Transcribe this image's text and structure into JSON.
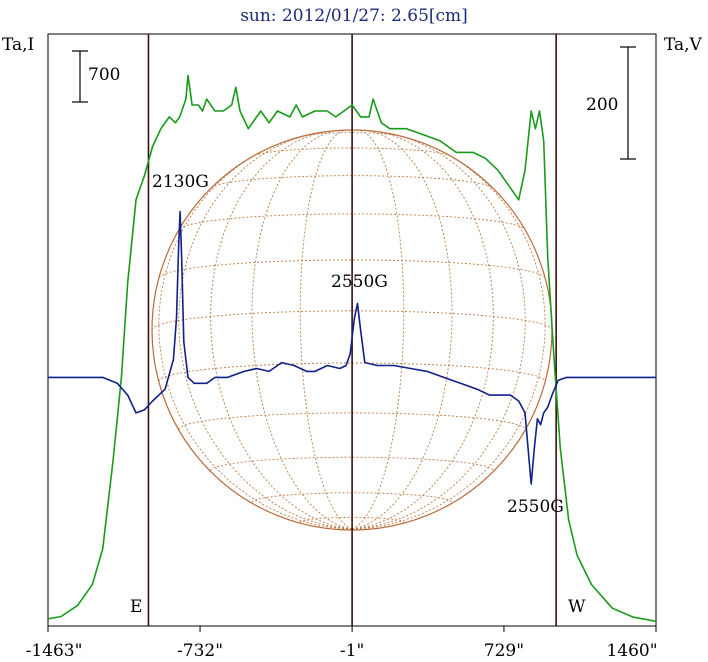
{
  "chart_data": {
    "type": "line",
    "title": "sun: 2012/01/27: 2.65[cm]",
    "left_axis_label": "Ta,I",
    "right_axis_label": "Ta,V",
    "x_ticks": [
      -1463,
      -732,
      -1,
      729,
      1460
    ],
    "x_tick_labels": [
      "-1463\"",
      "-732\"",
      "-1\"",
      "729\"",
      "1460\""
    ],
    "xlim": [
      -1463,
      1460
    ],
    "vertical_lines": [
      -980,
      -1,
      980
    ],
    "limb_labels": {
      "east": "E",
      "west": "W"
    },
    "scale_bars": {
      "left": "700",
      "right": "200"
    },
    "annotations": [
      {
        "text": "2130G",
        "x": -830
      },
      {
        "text": "2550G",
        "x": 50
      },
      {
        "text": "2550G",
        "x": 920
      }
    ],
    "series": [
      {
        "key": "I",
        "color": "#1a9a1a",
        "points": [
          [
            -1463,
            0.012
          ],
          [
            -1400,
            0.016
          ],
          [
            -1320,
            0.035
          ],
          [
            -1250,
            0.07
          ],
          [
            -1200,
            0.13
          ],
          [
            -1150,
            0.28
          ],
          [
            -1110,
            0.42
          ],
          [
            -1080,
            0.58
          ],
          [
            -1040,
            0.72
          ],
          [
            -1000,
            0.76
          ],
          [
            -960,
            0.81
          ],
          [
            -920,
            0.84
          ],
          [
            -880,
            0.86
          ],
          [
            -850,
            0.85
          ],
          [
            -830,
            0.86
          ],
          [
            -800,
            0.89
          ],
          [
            -790,
            0.93
          ],
          [
            -770,
            0.88
          ],
          [
            -740,
            0.88
          ],
          [
            -720,
            0.87
          ],
          [
            -700,
            0.89
          ],
          [
            -660,
            0.87
          ],
          [
            -620,
            0.87
          ],
          [
            -580,
            0.88
          ],
          [
            -560,
            0.91
          ],
          [
            -540,
            0.87
          ],
          [
            -500,
            0.84
          ],
          [
            -460,
            0.86
          ],
          [
            -440,
            0.87
          ],
          [
            -400,
            0.85
          ],
          [
            -360,
            0.87
          ],
          [
            -300,
            0.86
          ],
          [
            -270,
            0.88
          ],
          [
            -240,
            0.86
          ],
          [
            -180,
            0.87
          ],
          [
            -120,
            0.87
          ],
          [
            -80,
            0.86
          ],
          [
            -40,
            0.87
          ],
          [
            -1,
            0.88
          ],
          [
            40,
            0.86
          ],
          [
            80,
            0.86
          ],
          [
            100,
            0.89
          ],
          [
            140,
            0.85
          ],
          [
            180,
            0.84
          ],
          [
            260,
            0.84
          ],
          [
            340,
            0.83
          ],
          [
            420,
            0.82
          ],
          [
            500,
            0.8
          ],
          [
            580,
            0.8
          ],
          [
            640,
            0.79
          ],
          [
            700,
            0.77
          ],
          [
            760,
            0.74
          ],
          [
            800,
            0.72
          ],
          [
            830,
            0.77
          ],
          [
            860,
            0.87
          ],
          [
            880,
            0.84
          ],
          [
            900,
            0.87
          ],
          [
            920,
            0.82
          ],
          [
            940,
            0.62
          ],
          [
            970,
            0.45
          ],
          [
            1000,
            0.3
          ],
          [
            1040,
            0.18
          ],
          [
            1080,
            0.12
          ],
          [
            1150,
            0.07
          ],
          [
            1250,
            0.03
          ],
          [
            1350,
            0.015
          ],
          [
            1460,
            0.008
          ]
        ]
      },
      {
        "key": "V",
        "color": "#10208a",
        "points": [
          [
            -1463,
            0.42
          ],
          [
            -1300,
            0.42
          ],
          [
            -1200,
            0.42
          ],
          [
            -1130,
            0.41
          ],
          [
            -1080,
            0.39
          ],
          [
            -1040,
            0.36
          ],
          [
            -1000,
            0.365
          ],
          [
            -960,
            0.38
          ],
          [
            -900,
            0.4
          ],
          [
            -860,
            0.45
          ],
          [
            -845,
            0.52
          ],
          [
            -835,
            0.64
          ],
          [
            -828,
            0.7
          ],
          [
            -820,
            0.62
          ],
          [
            -810,
            0.48
          ],
          [
            -790,
            0.42
          ],
          [
            -760,
            0.41
          ],
          [
            -700,
            0.41
          ],
          [
            -660,
            0.42
          ],
          [
            -600,
            0.42
          ],
          [
            -520,
            0.43
          ],
          [
            -460,
            0.435
          ],
          [
            -400,
            0.43
          ],
          [
            -340,
            0.445
          ],
          [
            -280,
            0.44
          ],
          [
            -220,
            0.43
          ],
          [
            -180,
            0.43
          ],
          [
            -120,
            0.44
          ],
          [
            -60,
            0.435
          ],
          [
            -30,
            0.44
          ],
          [
            -10,
            0.46
          ],
          [
            10,
            0.52
          ],
          [
            25,
            0.545
          ],
          [
            40,
            0.5
          ],
          [
            60,
            0.445
          ],
          [
            120,
            0.44
          ],
          [
            200,
            0.44
          ],
          [
            280,
            0.435
          ],
          [
            360,
            0.43
          ],
          [
            440,
            0.42
          ],
          [
            520,
            0.41
          ],
          [
            600,
            0.4
          ],
          [
            660,
            0.39
          ],
          [
            720,
            0.39
          ],
          [
            760,
            0.39
          ],
          [
            800,
            0.38
          ],
          [
            830,
            0.36
          ],
          [
            850,
            0.28
          ],
          [
            860,
            0.24
          ],
          [
            875,
            0.3
          ],
          [
            890,
            0.35
          ],
          [
            905,
            0.34
          ],
          [
            920,
            0.36
          ],
          [
            940,
            0.37
          ],
          [
            960,
            0.39
          ],
          [
            990,
            0.415
          ],
          [
            1030,
            0.42
          ],
          [
            1100,
            0.42
          ],
          [
            1200,
            0.42
          ],
          [
            1300,
            0.42
          ],
          [
            1460,
            0.42
          ]
        ]
      }
    ]
  }
}
